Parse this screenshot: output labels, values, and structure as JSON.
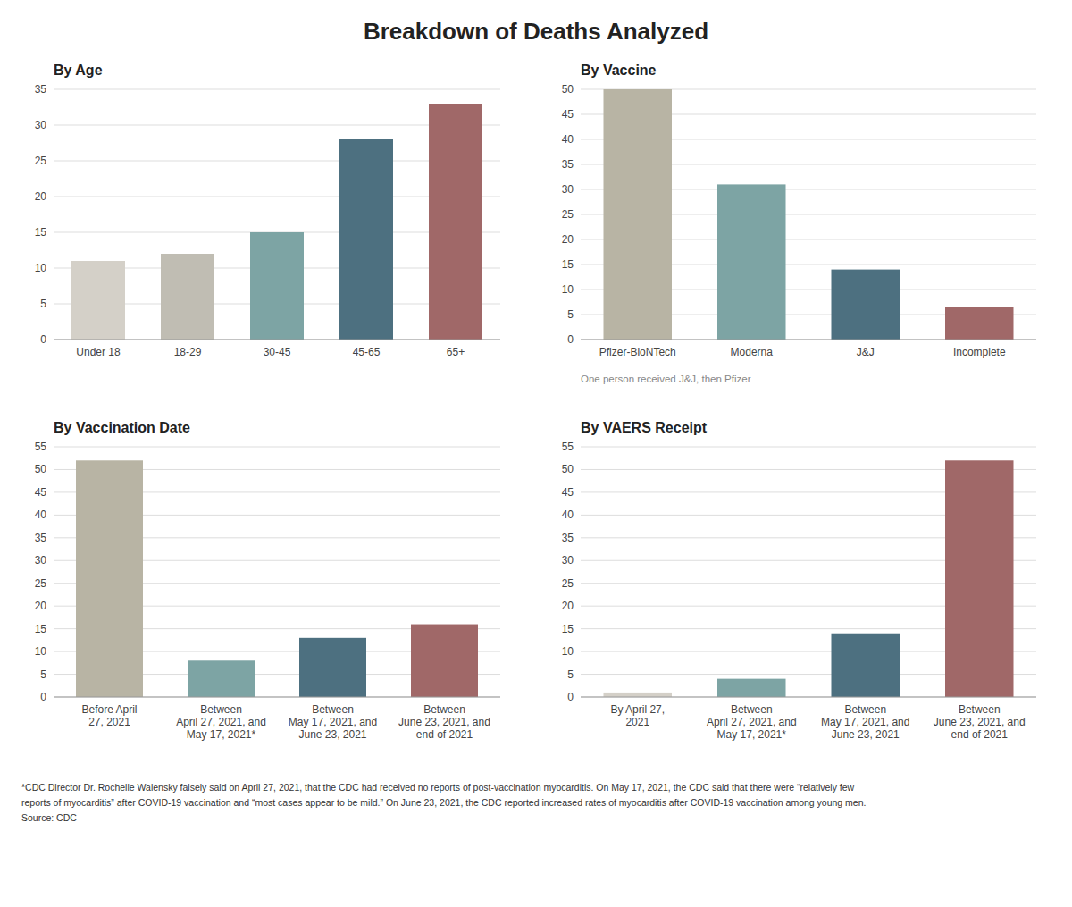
{
  "title": "Breakdown of Deaths Analyzed",
  "annotations": [
    "*CDC Director Dr. Rochelle Walensky falsely said on April 27, 2021, that the CDC had received no reports of post-vaccination myocarditis. On May 17, 2021, the CDC said that there were “relatively few",
    "reports of myocarditis” after COVID-19 vaccination and “most cases appear to be mild.” On June 23, 2021, the CDC reported increased rates of myocarditis after COVID-19 vaccination among young men.",
    "Source: CDC"
  ],
  "chart_data": [
    {
      "type": "bar",
      "title": "By Age",
      "categories": [
        "Under 18",
        "18-29",
        "30-45",
        "45-65",
        "65+"
      ],
      "values": [
        11,
        12,
        15,
        28,
        33
      ],
      "colors": [
        "#d4d0c8",
        "#c0bdb3",
        "#7da4a4",
        "#4d7080",
        "#a06868"
      ],
      "ylim": [
        0,
        35
      ],
      "yticks": [
        0,
        5,
        10,
        15,
        20,
        25,
        30,
        35
      ],
      "grid": true
    },
    {
      "type": "bar",
      "title": "By Vaccine",
      "categories": [
        "Pfizer-BioNTech",
        "Moderna",
        "J&J",
        "Incomplete"
      ],
      "values": [
        50,
        31,
        14,
        6.5
      ],
      "colors": [
        "#b8b4a4",
        "#7da4a4",
        "#4d7080",
        "#a06868"
      ],
      "ylim": [
        0,
        50
      ],
      "yticks": [
        0,
        5,
        10,
        15,
        20,
        25,
        30,
        35,
        40,
        45,
        50
      ],
      "grid": true,
      "annotations": [
        "One person received J&J, then Pfizer"
      ]
    },
    {
      "type": "bar",
      "title": "By Vaccination Date",
      "categories": [
        "Before April\n27, 2021",
        "Between\nApril 27, 2021, and\nMay 17, 2021*",
        "Between\nMay 17, 2021, and\nJune 23, 2021",
        "Between\nJune 23, 2021, and\nend of 2021"
      ],
      "values": [
        52,
        8,
        13,
        16
      ],
      "colors": [
        "#b8b4a4",
        "#7da4a4",
        "#4d7080",
        "#a06868"
      ],
      "ylim": [
        0,
        55
      ],
      "yticks": [
        0,
        5,
        10,
        15,
        20,
        25,
        30,
        35,
        40,
        45,
        50,
        55
      ],
      "grid": true
    },
    {
      "type": "bar",
      "title": "By VAERS Receipt",
      "categories": [
        "By April 27,\n2021",
        "Between\nApril 27, 2021, and\nMay 17, 2021*",
        "Between\nMay 17, 2021, and\nJune 23, 2021",
        "Between\nJune 23, 2021, and\nend of 2021"
      ],
      "values": [
        1,
        4,
        14,
        52
      ],
      "colors": [
        "#d4d0c8",
        "#7da4a4",
        "#4d7080",
        "#a06868"
      ],
      "ylim": [
        0,
        55
      ],
      "yticks": [
        0,
        5,
        10,
        15,
        20,
        25,
        30,
        35,
        40,
        45,
        50,
        55
      ],
      "grid": true
    }
  ]
}
